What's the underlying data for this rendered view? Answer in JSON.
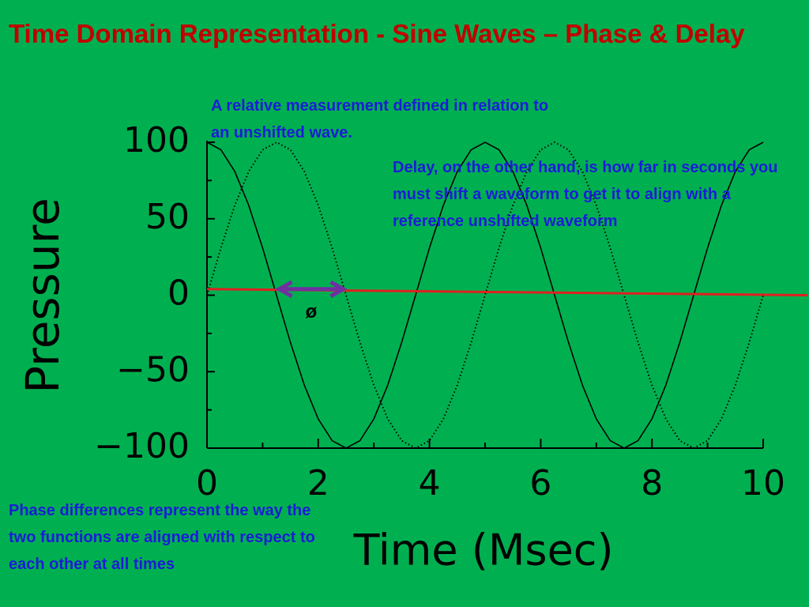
{
  "chart_data": {
    "type": "line",
    "title": "Time Domain Representation - Sine Waves – Phase & Delay",
    "xlabel": "Time (Msec)",
    "ylabel": "Pressure",
    "x": [
      0,
      0.25,
      0.5,
      0.75,
      1,
      1.25,
      1.5,
      1.75,
      2,
      2.25,
      2.5,
      2.75,
      3,
      3.25,
      3.5,
      3.75,
      4,
      4.25,
      4.5,
      4.75,
      5,
      5.25,
      5.5,
      5.75,
      6,
      6.25,
      6.5,
      6.75,
      7,
      7.25,
      7.5,
      7.75,
      8,
      8.25,
      8.5,
      8.75,
      9,
      9.25,
      9.5,
      9.75,
      10
    ],
    "series": [
      {
        "color": "#000000",
        "style": "solid",
        "values": [
          100,
          95.1,
          80.9,
          58.8,
          30.9,
          0,
          -30.9,
          -58.8,
          -80.9,
          -95.1,
          -100,
          -95.1,
          -80.9,
          -58.8,
          -30.9,
          0,
          30.9,
          58.8,
          80.9,
          95.1,
          100,
          95.1,
          80.9,
          58.8,
          30.9,
          0,
          -30.9,
          -58.8,
          -80.9,
          -95.1,
          -100,
          -95.1,
          -80.9,
          -58.8,
          -30.9,
          0,
          30.9,
          58.8,
          80.9,
          95.1,
          100
        ]
      },
      {
        "color": "#000000",
        "style": "dotted",
        "values": [
          0,
          30.9,
          58.8,
          80.9,
          95.1,
          100,
          95.1,
          80.9,
          58.8,
          30.9,
          0,
          -30.9,
          -58.8,
          -80.9,
          -95.1,
          -100,
          -95.1,
          -80.9,
          -58.8,
          -30.9,
          0,
          30.9,
          58.8,
          80.9,
          95.1,
          100,
          95.1,
          80.9,
          58.8,
          30.9,
          0,
          -30.9,
          -58.8,
          -80.9,
          -95.1,
          -100,
          -95.1,
          -80.9,
          -58.8,
          -30.9,
          0
        ]
      }
    ],
    "reference_line": {
      "color": "#e02020",
      "x": [
        0,
        10.8
      ],
      "values": [
        4,
        0
      ]
    },
    "phase_marker": {
      "label": "ø",
      "color": "#7030a0",
      "x": [
        1.3,
        2.45
      ],
      "y": 4
    },
    "xlim": [
      0,
      10
    ],
    "ylim": [
      -100,
      100
    ],
    "xticks": [
      0,
      2,
      4,
      6,
      8,
      10
    ],
    "xminorticks": [
      1,
      3,
      5,
      7,
      9
    ],
    "yticks": [
      {
        "value": -100,
        "label": "−100"
      },
      {
        "value": -50,
        "label": "−50"
      },
      0,
      50,
      100
    ],
    "yminorticks": [
      -75,
      -25,
      25,
      75
    ],
    "annotations": [
      "A relative measurement defined in relation to an unshifted wave.",
      "Delay, on the other hand, is how far in seconds you must shift a waveform to get it to align with a reference unshifted waveform",
      "Phase differences represent the way the two functions are aligned with respect to each other at all times"
    ]
  }
}
